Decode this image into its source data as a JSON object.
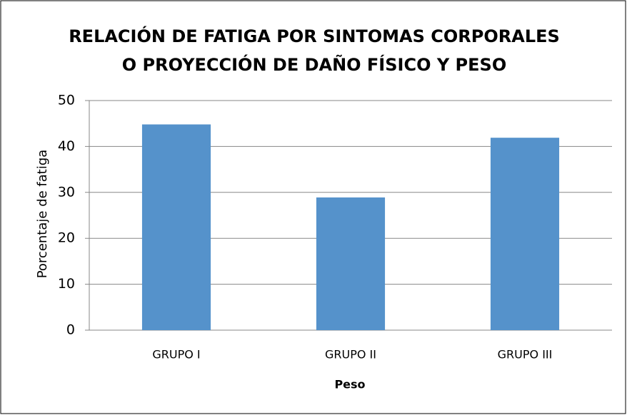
{
  "chart_data": {
    "type": "bar",
    "title": [
      "RELACIÓN DE FATIGA POR SINTOMAS CORPORALES",
      "O PROYECCIÓN DE DAÑO FÍSICO Y PESO"
    ],
    "x_label": "Peso",
    "y_label": "Porcentaje de fatiga",
    "categories": [
      "GRUPO I",
      "GRUPO II",
      "GRUPO III"
    ],
    "values": [
      44.8,
      28.9,
      41.9
    ],
    "color": "#5592cb",
    "ylim": [
      0,
      50
    ],
    "yticks": [
      0,
      10,
      20,
      30,
      40,
      50
    ],
    "grid": true
  }
}
